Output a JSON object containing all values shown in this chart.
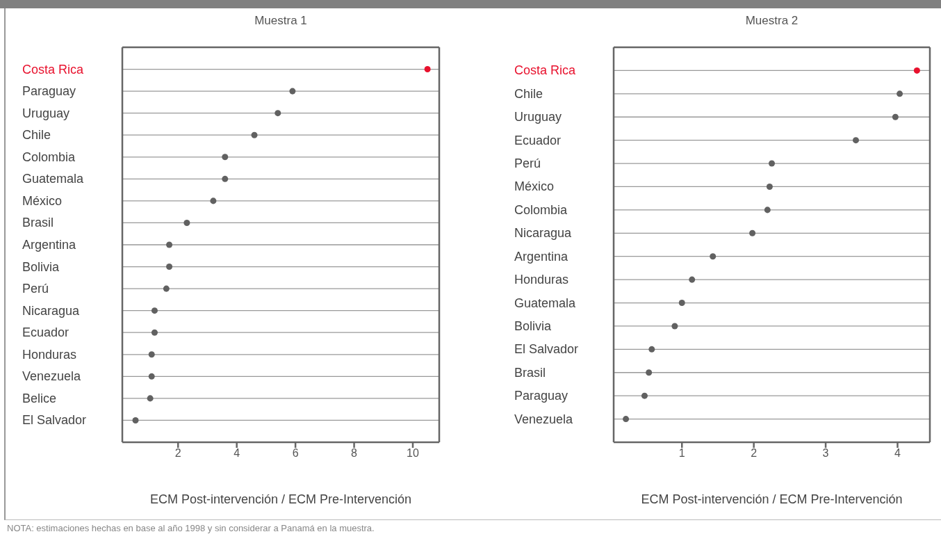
{
  "chart_data": [
    {
      "type": "scatter",
      "title": "Muestra 1",
      "orientation": "horizontal",
      "marker": "circle",
      "grid": "y",
      "categories": [
        "Costa Rica",
        "Paraguay",
        "Uruguay",
        "Chile",
        "Colombia",
        "Guatemala",
        "México",
        "Brasil",
        "Argentina",
        "Bolivia",
        "Perú",
        "Nicaragua",
        "Ecuador",
        "Honduras",
        "Venezuela",
        "Belice",
        "El Salvador"
      ],
      "values": [
        10.5,
        5.9,
        5.4,
        4.6,
        3.6,
        3.6,
        3.2,
        2.3,
        1.7,
        1.7,
        1.6,
        1.2,
        1.2,
        1.1,
        1.1,
        1.05,
        0.55
      ],
      "colors": [
        "#e8112d",
        "#616161",
        "#616161",
        "#616161",
        "#616161",
        "#616161",
        "#616161",
        "#616161",
        "#616161",
        "#616161",
        "#616161",
        "#616161",
        "#616161",
        "#616161",
        "#616161",
        "#616161",
        "#616161"
      ],
      "xlim": [
        0.1,
        10.9
      ],
      "xticks": [
        2,
        4,
        6,
        8,
        10
      ],
      "xlabel": "ECM Post-intervención / ECM Pre-Intervención",
      "annotations": [
        "NOTA: estimaciones hechas en base al año 1998 y sin considerar a Panamá en la muestra."
      ]
    },
    {
      "type": "scatter",
      "title": "Muestra 2",
      "orientation": "horizontal",
      "marker": "circle",
      "grid": "y",
      "categories": [
        "Costa Rica",
        "Chile",
        "Uruguay",
        "Ecuador",
        "Perú",
        "México",
        "Colombia",
        "Nicaragua",
        "Argentina",
        "Honduras",
        "Guatemala",
        "Bolivia",
        "El Salvador",
        "Brasil",
        "Paraguay",
        "Venezuela"
      ],
      "values": [
        4.27,
        4.03,
        3.97,
        3.42,
        2.25,
        2.22,
        2.19,
        1.98,
        1.43,
        1.14,
        1.0,
        0.9,
        0.58,
        0.54,
        0.48,
        0.22
      ],
      "colors": [
        "#e8112d",
        "#616161",
        "#616161",
        "#616161",
        "#616161",
        "#616161",
        "#616161",
        "#616161",
        "#616161",
        "#616161",
        "#616161",
        "#616161",
        "#616161",
        "#616161",
        "#616161",
        "#616161"
      ],
      "xlim": [
        0.05,
        4.45
      ],
      "xticks": [
        1,
        2,
        3,
        4
      ],
      "xlabel": "ECM Post-intervención / ECM Pre-Intervención"
    }
  ]
}
